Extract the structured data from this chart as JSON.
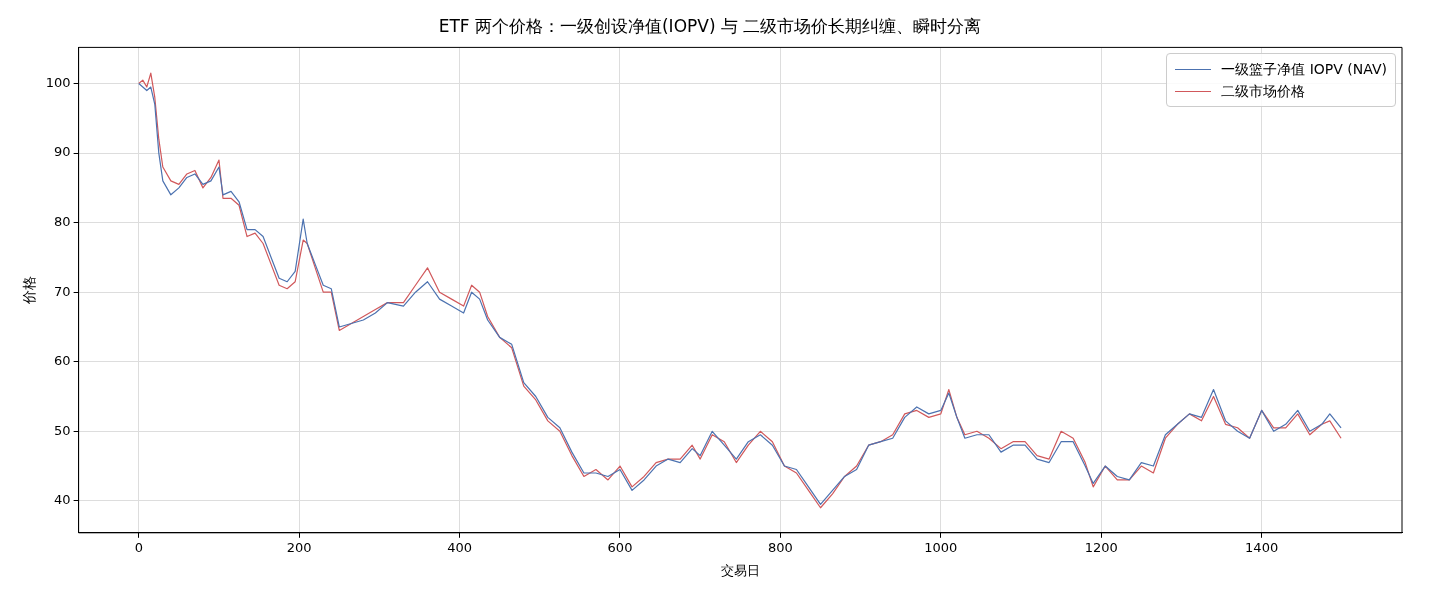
{
  "chart_data": {
    "type": "line",
    "title": "ETF 两个价格：一级创设净值(IOPV) 与 二级市场价长期纠缠、瞬时分离",
    "xlabel": "交易日",
    "ylabel": "价格",
    "x": [
      0,
      5,
      10,
      15,
      20,
      25,
      30,
      40,
      50,
      60,
      70,
      80,
      90,
      100,
      105,
      115,
      125,
      135,
      145,
      155,
      165,
      175,
      185,
      195,
      205,
      210,
      220,
      230,
      240,
      250,
      265,
      280,
      295,
      310,
      330,
      345,
      360,
      375,
      390,
      405,
      415,
      425,
      435,
      450,
      465,
      480,
      495,
      510,
      525,
      540,
      555,
      570,
      585,
      600,
      615,
      630,
      645,
      660,
      675,
      690,
      700,
      715,
      730,
      745,
      760,
      775,
      790,
      805,
      820,
      835,
      850,
      865,
      880,
      895,
      910,
      925,
      940,
      955,
      970,
      985,
      1000,
      1010,
      1020,
      1030,
      1045,
      1060,
      1075,
      1090,
      1105,
      1120,
      1135,
      1150,
      1165,
      1180,
      1190,
      1205,
      1220,
      1235,
      1250,
      1265,
      1280,
      1295,
      1310,
      1325,
      1340,
      1355,
      1370,
      1385,
      1400,
      1415,
      1430,
      1445,
      1460,
      1475,
      1485,
      1499
    ],
    "series": [
      {
        "name": "一级篮子净值 IOPV (NAV)",
        "color": "#4c72b0",
        "values": [
          100,
          99.5,
          99,
          99.5,
          97,
          90,
          86,
          84,
          85,
          86.5,
          87,
          85.5,
          86,
          88,
          84,
          84.5,
          83,
          79,
          79,
          78,
          75,
          72,
          71.5,
          73,
          80.5,
          77,
          74,
          71,
          70.5,
          65,
          65.5,
          66,
          67,
          68.5,
          68,
          70,
          71.5,
          69,
          68,
          67,
          70,
          69,
          66,
          63.5,
          62.5,
          57,
          55,
          52,
          50.5,
          47,
          44,
          44,
          43.5,
          44.5,
          41.5,
          43,
          45,
          46,
          45.5,
          47.5,
          46.5,
          50,
          48,
          46,
          48.5,
          49.5,
          48,
          45,
          44.5,
          42,
          39.5,
          41.5,
          43.5,
          44.5,
          48,
          48.5,
          49,
          52,
          53.5,
          52.5,
          53,
          55.5,
          52,
          49,
          49.5,
          49.5,
          47,
          48,
          48,
          46,
          45.5,
          48.5,
          48.5,
          45,
          42.5,
          45,
          43.5,
          43,
          45.5,
          45,
          49.5,
          51,
          52.5,
          52,
          56,
          51.5,
          50,
          49,
          53,
          50,
          51,
          53,
          50,
          51,
          52.5,
          50.5
        ]
      },
      {
        "name": "二级市场价格",
        "color": "#d1585b",
        "values": [
          100,
          100.5,
          99.5,
          101.5,
          98,
          92,
          88,
          86,
          85.5,
          87,
          87.5,
          85,
          86.5,
          89,
          83.5,
          83.5,
          82.5,
          78,
          78.5,
          77,
          74,
          71,
          70.5,
          71.5,
          77.5,
          77,
          73.5,
          70,
          70,
          64.5,
          65.5,
          66.5,
          67.5,
          68.5,
          68.5,
          71,
          73.5,
          70,
          69,
          68,
          71,
          70,
          66.5,
          63.5,
          62,
          56.5,
          54.5,
          51.5,
          50,
          46.5,
          43.5,
          44.5,
          43,
          45,
          42,
          43.5,
          45.5,
          46,
          46,
          48,
          46,
          49.5,
          48.5,
          45.5,
          48,
          50,
          48.5,
          45,
          44,
          41.5,
          39,
          41,
          43.5,
          45,
          48,
          48.5,
          49.5,
          52.5,
          53,
          52,
          52.5,
          56,
          52,
          49.5,
          50,
          49,
          47.5,
          48.5,
          48.5,
          46.5,
          46,
          50,
          49,
          45.5,
          42,
          45,
          43,
          43,
          45,
          44,
          49,
          51,
          52.5,
          51.5,
          55,
          51,
          50.5,
          49,
          53,
          50.5,
          50.5,
          52.5,
          49.5,
          51,
          51.5,
          49
        ]
      }
    ],
    "xlim": [
      -75,
      1575
    ],
    "ylim": [
      35.4,
      105.2
    ],
    "xticks": [
      0,
      200,
      400,
      600,
      800,
      1000,
      1200,
      1400
    ],
    "yticks": [
      40,
      50,
      60,
      70,
      80,
      90,
      100
    ],
    "grid": true,
    "legend": "top right",
    "marker": "none",
    "line_style": "solid"
  }
}
